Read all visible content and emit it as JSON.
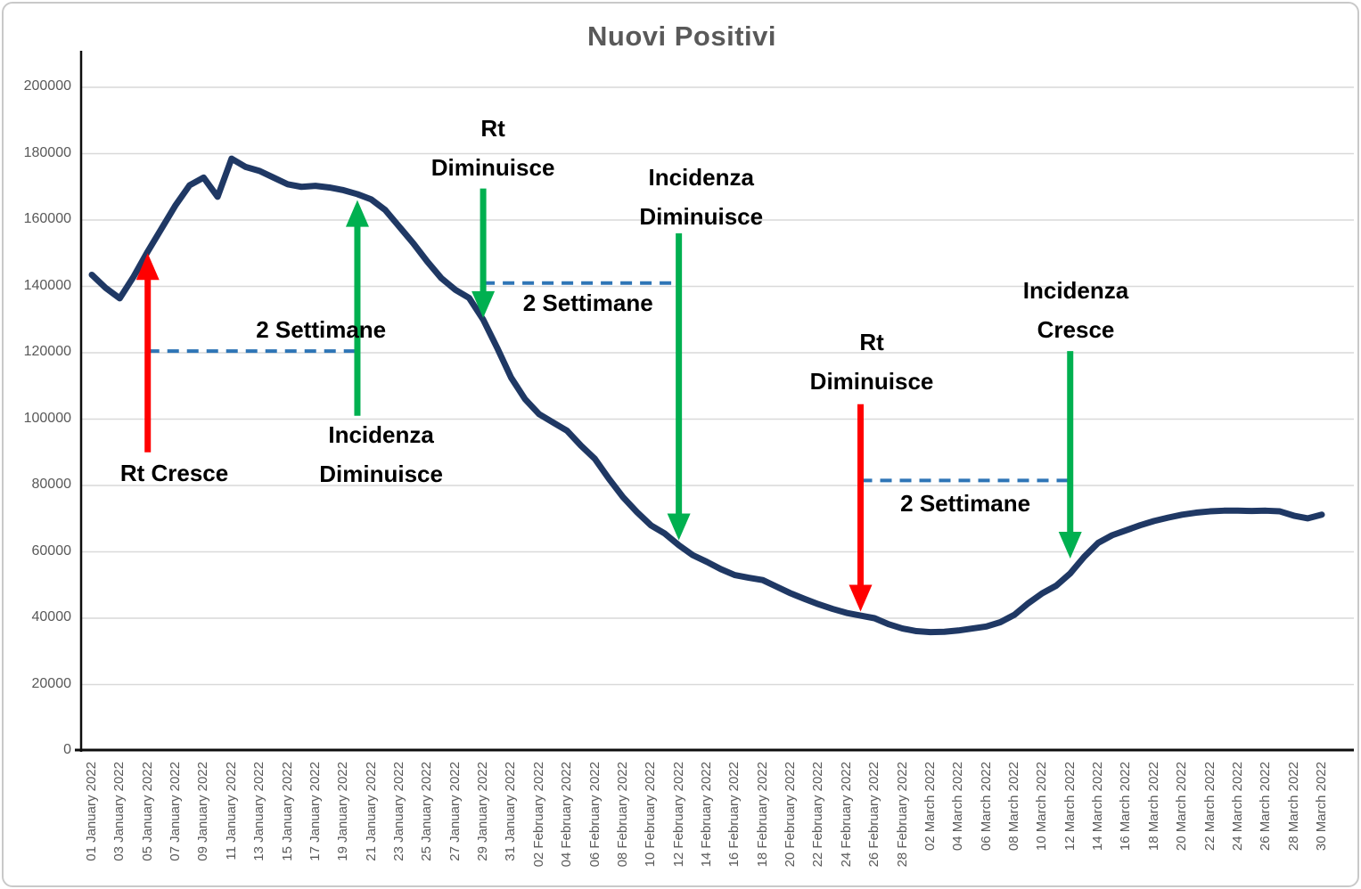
{
  "chart_data": {
    "type": "line",
    "title": "Nuovi Positivi",
    "xlabel": "",
    "ylabel": "",
    "ylim": [
      0,
      200000
    ],
    "ytick_step": 20000,
    "yticks": [
      0,
      20000,
      40000,
      60000,
      80000,
      100000,
      120000,
      140000,
      160000,
      180000,
      200000
    ],
    "grid": true,
    "legend": false,
    "x_tick_interval": 2,
    "dates": [
      "01 January 2022",
      "02 January 2022",
      "03 January 2022",
      "04 January 2022",
      "05 January 2022",
      "06 January 2022",
      "07 January 2022",
      "08 January 2022",
      "09 January 2022",
      "10 January 2022",
      "11 January 2022",
      "12 January 2022",
      "13 January 2022",
      "14 January 2022",
      "15 January 2022",
      "16 January 2022",
      "17 January 2022",
      "18 January 2022",
      "19 January 2022",
      "20 January 2022",
      "21 January 2022",
      "22 January 2022",
      "23 January 2022",
      "24 January 2022",
      "25 January 2022",
      "26 January 2022",
      "27 January 2022",
      "28 January 2022",
      "29 January 2022",
      "30 January 2022",
      "31 January 2022",
      "01 February 2022",
      "02 February 2022",
      "03 February 2022",
      "04 February 2022",
      "05 February 2022",
      "06 February 2022",
      "07 February 2022",
      "08 February 2022",
      "09 February 2022",
      "10 February 2022",
      "11 February 2022",
      "12 February 2022",
      "13 February 2022",
      "14 February 2022",
      "15 February 2022",
      "16 February 2022",
      "17 February 2022",
      "18 February 2022",
      "19 February 2022",
      "20 February 2022",
      "21 February 2022",
      "22 February 2022",
      "23 February 2022",
      "24 February 2022",
      "25 February 2022",
      "26 February 2022",
      "27 February 2022",
      "28 February 2022",
      "01 March 2022",
      "02 March 2022",
      "03 March 2022",
      "04 March 2022",
      "05 March 2022",
      "06 March 2022",
      "07 March 2022",
      "08 March 2022",
      "09 March 2022",
      "10 March 2022",
      "11 March 2022",
      "12 March 2022",
      "13 March 2022",
      "14 March 2022",
      "15 March 2022",
      "16 March 2022",
      "17 March 2022",
      "18 March 2022",
      "19 March 2022",
      "20 March 2022",
      "21 March 2022",
      "22 March 2022",
      "23 March 2022",
      "24 March 2022",
      "25 March 2022",
      "26 March 2022",
      "27 March 2022",
      "28 March 2022",
      "29 March 2022",
      "30 March 2022"
    ],
    "values": [
      143500,
      139500,
      136400,
      143000,
      150500,
      157500,
      164500,
      170500,
      172800,
      167000,
      178500,
      176000,
      174800,
      172800,
      170800,
      170000,
      170300,
      169800,
      169000,
      167800,
      166200,
      163000,
      158000,
      153000,
      147500,
      142500,
      139000,
      136500,
      130000,
      121500,
      112500,
      106000,
      101500,
      99000,
      96500,
      92000,
      88000,
      82000,
      76500,
      72000,
      68000,
      65500,
      62000,
      59000,
      57000,
      54800,
      53000,
      52200,
      51500,
      49500,
      47500,
      45800,
      44200,
      42800,
      41600,
      40800,
      40000,
      38200,
      36900,
      36100,
      35800,
      35900,
      36300,
      36900,
      37500,
      38800,
      41000,
      44500,
      47500,
      49800,
      53500,
      58500,
      62700,
      65000,
      66500,
      68000,
      69300,
      70300,
      71200,
      71800,
      72200,
      72400,
      72400,
      72300,
      72400,
      72200,
      70900,
      70100,
      71200
    ],
    "colors": {
      "line": "#1F3864",
      "arrow_red": "#FF0000",
      "arrow_green": "#00B050",
      "dashed": "#2E75B6",
      "grid": "#D9D9D9",
      "axis": "#0d0d0d",
      "title": "#595959",
      "tick_label": "#595959"
    },
    "annotations": {
      "arrows": [
        {
          "name": "rt-cresce-arrow",
          "color": "#FF0000",
          "direction": "up",
          "day": 4,
          "date": "05 January 2022",
          "value_tail": 90000,
          "value_head": 150000
        },
        {
          "name": "incidenza-diminuisce-arrow-1",
          "color": "#00B050",
          "direction": "up",
          "day": 19,
          "date": "20 January 2022",
          "value_tail": 101000,
          "value_head": 166000
        },
        {
          "name": "rt-diminuisce-arrow-1",
          "color": "#00B050",
          "direction": "down",
          "day": 28,
          "date": "29 January 2022",
          "value_tail": 169500,
          "value_head": 130500
        },
        {
          "name": "incidenza-diminuisce-arrow-2",
          "color": "#00B050",
          "direction": "down",
          "day": 42,
          "date": "12 February 2022",
          "value_tail": 156000,
          "value_head": 63500
        },
        {
          "name": "rt-diminuisce-arrow-2",
          "color": "#FF0000",
          "direction": "down",
          "day": 55,
          "date": "25 February 2022",
          "value_tail": 104500,
          "value_head": 42000
        },
        {
          "name": "incidenza-cresce-arrow",
          "color": "#00B050",
          "direction": "down",
          "day": 70,
          "date": "12 March 2022",
          "value_tail": 120500,
          "value_head": 58000
        }
      ],
      "spans": [
        {
          "name": "two-weeks-span-1",
          "label": "2 Settimane",
          "day_from": 4,
          "day_to": 19,
          "value": 120500
        },
        {
          "name": "two-weeks-span-2",
          "label": "2 Settimane",
          "day_from": 28,
          "day_to": 42,
          "value": 141000
        },
        {
          "name": "two-weeks-span-3",
          "label": "2 Settimane",
          "day_from": 55,
          "day_to": 70,
          "value": 81500
        }
      ],
      "labels": [
        {
          "name": "rt-cresce-label",
          "lines": [
            "Rt Cresce"
          ],
          "day": 5.9,
          "value": 83800
        },
        {
          "name": "two-settimane-label-1",
          "lines": [
            "2 Settimane"
          ],
          "day": 16.4,
          "value": 127000
        },
        {
          "name": "incidenza-diminuisce-label-1",
          "lines": [
            "Incidenza",
            "Diminuisce"
          ],
          "day": 20.7,
          "value": 89400
        },
        {
          "name": "rt-diminuisce-label-1",
          "lines": [
            "Rt",
            "Diminuisce"
          ],
          "day": 28.7,
          "value": 181700
        },
        {
          "name": "incidenza-diminuisce-label-2",
          "lines": [
            "Incidenza",
            "Diminuisce"
          ],
          "day": 43.6,
          "value": 167000
        },
        {
          "name": "two-settimane-label-2",
          "lines": [
            "2 Settimane"
          ],
          "day": 35.5,
          "value": 135000
        },
        {
          "name": "rt-diminuisce-label-2",
          "lines": [
            "Rt",
            "Diminuisce"
          ],
          "day": 55.8,
          "value": 117300
        },
        {
          "name": "two-settimane-label-3",
          "lines": [
            "2 Settimane"
          ],
          "day": 62.5,
          "value": 74600
        },
        {
          "name": "incidenza-cresce-label",
          "lines": [
            "Incidenza",
            "Cresce"
          ],
          "day": 70.4,
          "value": 132900
        }
      ]
    }
  }
}
